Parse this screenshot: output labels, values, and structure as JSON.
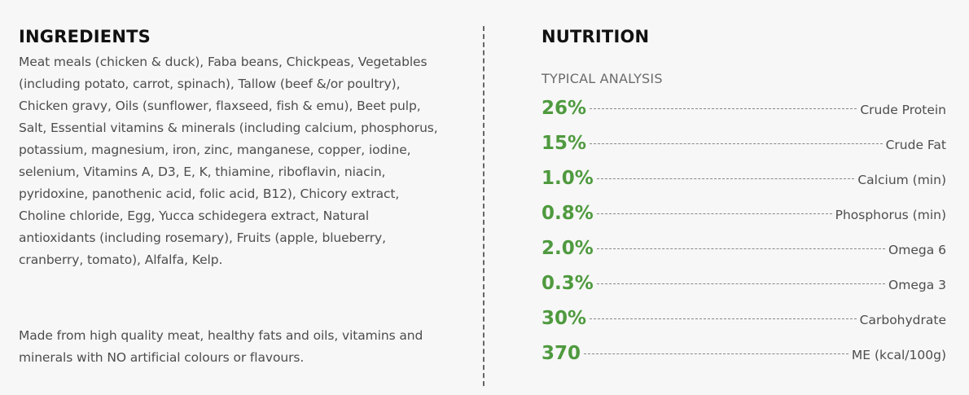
{
  "ingredients": {
    "heading": "INGREDIENTS",
    "text": "Meat meals (chicken & duck), Faba beans, Chickpeas, Vegetables (including potato, carrot, spinach), Tallow (beef &/or poultry), Chicken gravy, Oils (sunflower, flaxseed, fish & emu), Beet pulp, Salt, Essential vitamins & minerals (including calcium, phosphorus, potassium, magnesium, iron, zinc, manganese, copper, iodine, selenium, Vitamins A, D3, E, K, thiamine, riboflavin, niacin, pyridoxine, panothenic acid, folic acid, B12), Chicory extract, Choline chloride, Egg, Yucca schidegera extract, Natural antioxidants (including rosemary), Fruits (apple, blueberry, cranberry, tomato), Alfalfa, Kelp.",
    "note": "Made from high quality meat, healthy fats and oils, vitamins and minerals with NO artificial colours or flavours."
  },
  "nutrition": {
    "heading": "NUTRITION",
    "subheading": "TYPICAL ANALYSIS",
    "value_color": "#4f9a3f",
    "rows": [
      {
        "value": "26%",
        "label": "Crude Protein"
      },
      {
        "value": "15%",
        "label": "Crude Fat"
      },
      {
        "value": "1.0%",
        "label": "Calcium (min)"
      },
      {
        "value": "0.8%",
        "label": "Phosphorus (min)"
      },
      {
        "value": "2.0%",
        "label": "Omega 6"
      },
      {
        "value": "0.3%",
        "label": "Omega 3"
      },
      {
        "value": "30%",
        "label": "Carbohydrate"
      },
      {
        "value": "370",
        "label": "ME (kcal/100g)"
      }
    ]
  }
}
